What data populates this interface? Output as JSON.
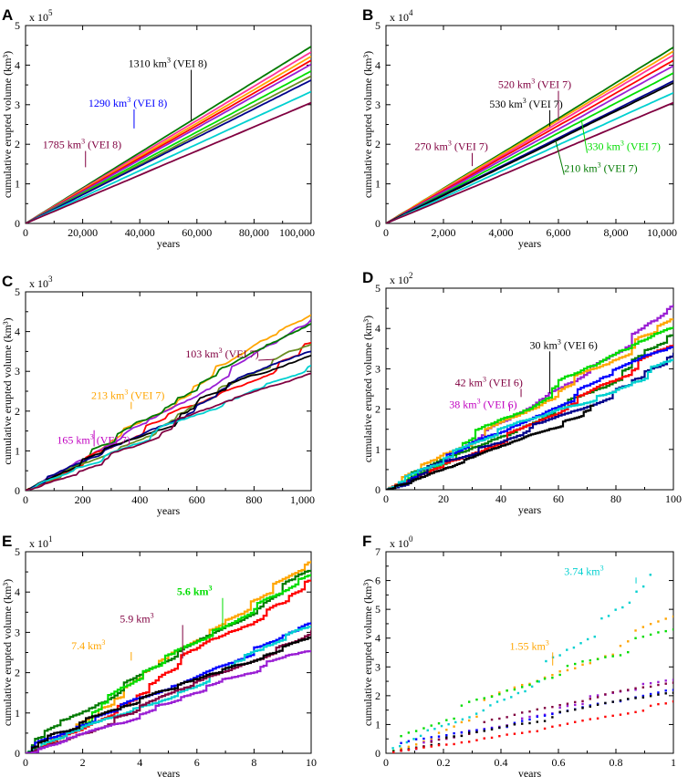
{
  "figure": {
    "colors": {
      "black": "#000000",
      "red": "#ff0000",
      "blue": "#0000ff",
      "darkblue": "#00008b",
      "green": "#00dd00",
      "darkgreen": "#007a00",
      "orange": "#ffa500",
      "purple": "#9a1fd4",
      "magenta": "#c000c0",
      "maroon": "#800040",
      "cyan": "#00d0d0",
      "pink": "#ff3399",
      "olive": "#6b8e23"
    }
  },
  "chart_data": [
    {
      "panel": "A",
      "type": "line",
      "xlabel": "years",
      "ylabel": "cumulative erupted volume (km³)",
      "exponent_base": "x 10",
      "exponent_power": "5",
      "xlim": [
        0,
        100000
      ],
      "ylim": [
        0,
        5
      ],
      "xticks": [
        0,
        20000,
        40000,
        60000,
        80000,
        100000
      ],
      "xtick_labels": [
        "0",
        "20,000",
        "40,000",
        "60,000",
        "80,000",
        "100,000"
      ],
      "yticks": [
        0,
        1,
        2,
        3,
        4,
        5
      ],
      "ytick_labels": [
        "0",
        "1",
        "2",
        "3",
        "4",
        "5"
      ],
      "series": [
        {
          "color": "darkgreen",
          "end": 4.47
        },
        {
          "color": "pink",
          "end": 4.33
        },
        {
          "color": "orange",
          "end": 4.22
        },
        {
          "color": "red",
          "end": 4.12
        },
        {
          "color": "purple",
          "end": 4.02
        },
        {
          "color": "green",
          "end": 3.85
        },
        {
          "color": "olive",
          "end": 3.72
        },
        {
          "color": "darkblue",
          "end": 3.62
        },
        {
          "color": "cyan",
          "end": 3.33
        },
        {
          "color": "maroon",
          "end": 3.05
        }
      ],
      "annotations": [
        {
          "base": "1310 km",
          "sup": "3",
          "rest": " (VEI 8)",
          "color": "black",
          "tx": 0.36,
          "ty": 3.95,
          "px": 0.58,
          "py": 2.6
        },
        {
          "base": "1290 km",
          "sup": "3",
          "rest": " (VEI 8)",
          "color": "blue",
          "tx": 0.22,
          "ty": 2.95,
          "px": 0.38,
          "py": 2.4
        },
        {
          "base": "1785 km",
          "sup": "3",
          "rest": " (VEI 8)",
          "color": "maroon",
          "tx": 0.06,
          "ty": 1.9,
          "px": 0.21,
          "py": 1.42
        }
      ]
    },
    {
      "panel": "B",
      "type": "line",
      "xlabel": "years",
      "ylabel": "cumulative erupted volume (km³)",
      "exponent_base": "x 10",
      "exponent_power": "4",
      "xlim": [
        0,
        10000
      ],
      "ylim": [
        0,
        5
      ],
      "xticks": [
        0,
        2000,
        4000,
        6000,
        8000,
        10000
      ],
      "xtick_labels": [
        "0",
        "2,000",
        "4,000",
        "6,000",
        "8,000",
        "10,000"
      ],
      "yticks": [
        0,
        1,
        2,
        3,
        4,
        5
      ],
      "ytick_labels": [
        "0",
        "1",
        "2",
        "3",
        "4",
        "5"
      ],
      "series": [
        {
          "color": "darkgreen",
          "end": 4.45
        },
        {
          "color": "orange",
          "end": 4.35
        },
        {
          "color": "pink",
          "end": 4.25
        },
        {
          "color": "red",
          "end": 4.12
        },
        {
          "color": "purple",
          "end": 3.98
        },
        {
          "color": "green",
          "end": 3.8
        },
        {
          "color": "darkblue",
          "end": 3.6
        },
        {
          "color": "black",
          "end": 3.55
        },
        {
          "color": "cyan",
          "end": 3.3
        },
        {
          "color": "maroon",
          "end": 3.05
        }
      ],
      "annotations": [
        {
          "base": "520 km",
          "sup": "3",
          "rest": " (VEI 7)",
          "color": "maroon",
          "tx": 0.39,
          "ty": 3.42,
          "px": 0.6,
          "py": 2.6
        },
        {
          "base": "530 km",
          "sup": "3",
          "rest": " (VEI 7)",
          "color": "black",
          "tx": 0.36,
          "ty": 2.93,
          "px": 0.57,
          "py": 2.45
        },
        {
          "base": "270 km",
          "sup": "3",
          "rest": " (VEI 7)",
          "color": "maroon",
          "tx": 0.1,
          "ty": 1.85,
          "px": 0.3,
          "py": 1.45
        },
        {
          "base": "330 km",
          "sup": "3",
          "rest": " (VEI 7)",
          "color": "green",
          "tx": 0.7,
          "ty": 1.85,
          "px": 0.68,
          "py": 2.62
        },
        {
          "base": "210 km",
          "sup": "3",
          "rest": " (VEI 7)",
          "color": "darkgreen",
          "tx": 0.62,
          "ty": 1.3,
          "px": 0.59,
          "py": 2.1
        }
      ]
    },
    {
      "panel": "C",
      "type": "line",
      "xlabel": "years",
      "ylabel": "cumulative erupted volume (km³)",
      "exponent_base": "x 10",
      "exponent_power": "3",
      "xlim": [
        0,
        1000
      ],
      "ylim": [
        0,
        5
      ],
      "xticks": [
        0,
        200,
        400,
        600,
        800,
        1000
      ],
      "xtick_labels": [
        "0",
        "200",
        "400",
        "600",
        "800",
        "1,000"
      ],
      "yticks": [
        0,
        1,
        2,
        3,
        4,
        5
      ],
      "ytick_labels": [
        "0",
        "1",
        "2",
        "3",
        "4",
        "5"
      ],
      "series": [
        {
          "color": "orange",
          "end": 4.42
        },
        {
          "color": "purple",
          "end": 4.3
        },
        {
          "color": "darkgreen",
          "end": 4.2
        },
        {
          "color": "red",
          "end": 3.72
        },
        {
          "color": "olive",
          "end": 3.68
        },
        {
          "color": "darkblue",
          "end": 3.5
        },
        {
          "color": "black",
          "end": 3.4
        },
        {
          "color": "cyan",
          "end": 3.15
        },
        {
          "color": "maroon",
          "end": 2.95
        }
      ],
      "annotations": [
        {
          "base": "103 km",
          "sup": "3",
          "rest": " (VEI 7)",
          "color": "maroon",
          "tx": 0.56,
          "ty": 3.35,
          "px": 0.87,
          "py": 3.3
        },
        {
          "base": "213 km",
          "sup": "3",
          "rest": " (VEI 7)",
          "color": "orange",
          "tx": 0.23,
          "ty": 2.3,
          "px": 0.37,
          "py": 2.05
        },
        {
          "base": "165 km",
          "sup": "3",
          "rest": " (VEI 7)",
          "color": "magenta",
          "tx": 0.11,
          "ty": 1.18,
          "px": 0.24,
          "py": 1.52
        }
      ]
    },
    {
      "panel": "D",
      "type": "line",
      "xlabel": "years",
      "ylabel": "cumulative erupted volume (km³)",
      "exponent_base": "x 10",
      "exponent_power": "2",
      "xlim": [
        0,
        100
      ],
      "ylim": [
        0,
        5
      ],
      "xticks": [
        0,
        20,
        40,
        60,
        80,
        100
      ],
      "xtick_labels": [
        "0",
        "20",
        "40",
        "60",
        "80",
        "100"
      ],
      "yticks": [
        0,
        1,
        2,
        3,
        4,
        5
      ],
      "ytick_labels": [
        "0",
        "1",
        "2",
        "3",
        "4",
        "5"
      ],
      "series": [
        {
          "color": "purple",
          "end": 4.6
        },
        {
          "color": "orange",
          "end": 4.25
        },
        {
          "color": "green",
          "end": 4.05
        },
        {
          "color": "darkgreen",
          "end": 3.85
        },
        {
          "color": "red",
          "end": 3.6
        },
        {
          "color": "blue",
          "end": 3.55
        },
        {
          "color": "darkblue",
          "end": 3.4
        },
        {
          "color": "cyan",
          "end": 3.25
        },
        {
          "color": "black",
          "end": 2.1,
          "xend": 0.72
        }
      ],
      "annotations": [
        {
          "base": "30 km",
          "sup": "3",
          "rest": " (VEI 6)",
          "color": "black",
          "tx": 0.5,
          "ty": 3.5,
          "px": 0.57,
          "py": 2.4
        },
        {
          "base": "42 km",
          "sup": "3",
          "rest": " (VEI 6)",
          "color": "maroon",
          "tx": 0.24,
          "ty": 2.57,
          "px": 0.47,
          "py": 2.3
        },
        {
          "base": "38 km",
          "sup": "3",
          "rest": " (VEI 6)",
          "color": "magenta",
          "tx": 0.22,
          "ty": 2.02,
          "px": 0.43,
          "py": 2.1
        }
      ]
    },
    {
      "panel": "E",
      "type": "line",
      "xlabel": "years",
      "ylabel": "cumulative erupted volume (km³)",
      "exponent_base": "x 10",
      "exponent_power": "1",
      "xlim": [
        0,
        10
      ],
      "ylim": [
        0,
        5
      ],
      "xticks": [
        0,
        2,
        4,
        6,
        8,
        10
      ],
      "xtick_labels": [
        "0",
        "2",
        "4",
        "6",
        "8",
        "10"
      ],
      "yticks": [
        0,
        1,
        2,
        3,
        4,
        5
      ],
      "ytick_labels": [
        "0",
        "1",
        "2",
        "3",
        "4",
        "5"
      ],
      "series": [
        {
          "color": "orange",
          "end": 4.78
        },
        {
          "color": "darkgreen",
          "end": 4.55
        },
        {
          "color": "green",
          "end": 4.45
        },
        {
          "color": "red",
          "end": 4.3
        },
        {
          "color": "blue",
          "end": 3.25
        },
        {
          "color": "cyan",
          "end": 3.15
        },
        {
          "color": "maroon",
          "end": 3.05
        },
        {
          "color": "black",
          "end": 2.9
        },
        {
          "color": "purple",
          "end": 2.55
        }
      ],
      "annotations": [
        {
          "base": "5.6 km",
          "sup": "3",
          "rest": "",
          "color": "green",
          "tx": 0.53,
          "ty": 3.92,
          "px": 0.69,
          "py": 3.05,
          "bold": true
        },
        {
          "base": "5.9 km",
          "sup": "3",
          "rest": "",
          "color": "maroon",
          "tx": 0.33,
          "ty": 3.25,
          "px": 0.55,
          "py": 2.35
        },
        {
          "base": "7.4 km",
          "sup": "3",
          "rest": "",
          "color": "orange",
          "tx": 0.16,
          "ty": 2.58,
          "px": 0.37,
          "py": 2.3
        }
      ]
    },
    {
      "panel": "F",
      "type": "scatter",
      "xlabel": "years",
      "ylabel": "cumulative erupted volume (km³)",
      "exponent_base": "x 10",
      "exponent_power": "0",
      "xlim": [
        0,
        1
      ],
      "ylim": [
        0,
        7
      ],
      "xticks": [
        0,
        0.2,
        0.4,
        0.6,
        0.8,
        1
      ],
      "xtick_labels": [
        "0",
        "0.2",
        "0.4",
        "0.6",
        "0.8",
        "1"
      ],
      "yticks": [
        0,
        1,
        2,
        3,
        4,
        5,
        6,
        7
      ],
      "ytick_labels": [
        "0",
        "1",
        "2",
        "3",
        "4",
        "5",
        "6",
        "7"
      ],
      "series": [
        {
          "color": "cyan",
          "end": 6.2,
          "xend": 0.92
        },
        {
          "color": "orange",
          "end": 4.75
        },
        {
          "color": "green",
          "end": 4.3
        },
        {
          "color": "purple",
          "end": 2.55
        },
        {
          "color": "maroon",
          "end": 2.45
        },
        {
          "color": "blue",
          "end": 2.2
        },
        {
          "color": "black",
          "end": 2.1
        },
        {
          "color": "red",
          "end": 1.8
        }
      ],
      "annotations": [
        {
          "base": "3.74 km",
          "sup": "3",
          "rest": "",
          "color": "cyan",
          "tx": 0.62,
          "ty": 6.2,
          "px": 0.87,
          "py": 5.9
        },
        {
          "base": "1.55 km",
          "sup": "3",
          "rest": "",
          "color": "orange",
          "tx": 0.43,
          "ty": 3.6,
          "px": 0.58,
          "py": 3.05
        }
      ]
    }
  ]
}
